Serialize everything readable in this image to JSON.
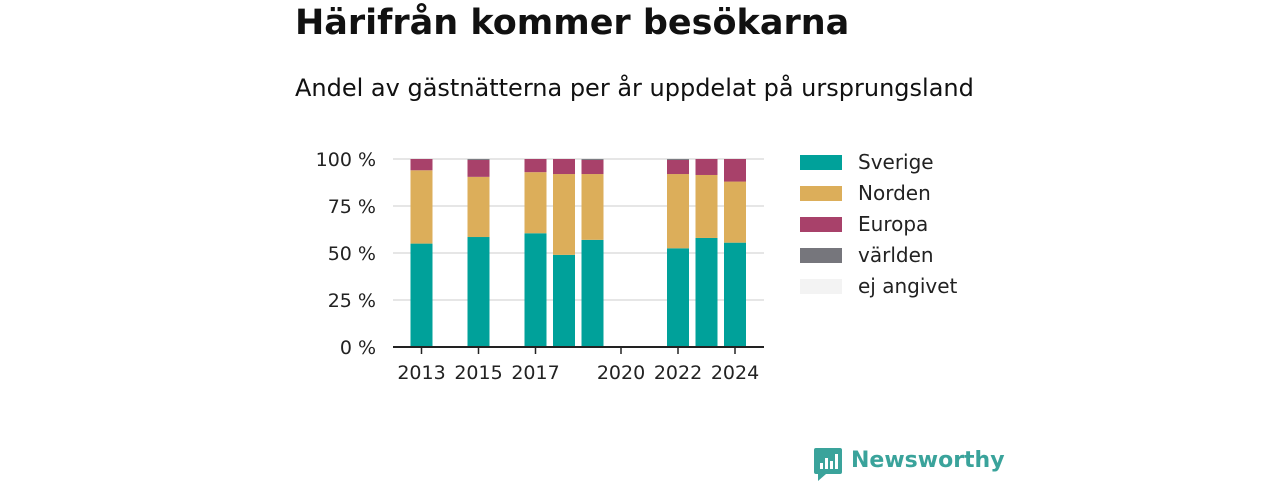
{
  "header": {
    "title": "Härifrån kommer besökarna",
    "subtitle": "Andel av gästnätterna per år uppdelat på ursprungsland"
  },
  "brand": {
    "name": "Newsworthy",
    "color": "#3aa39b",
    "icon": "bar-chart-speech-bubble-icon"
  },
  "chart_data": {
    "type": "bar",
    "stacked": true,
    "x": [
      2013,
      2014,
      2015,
      2016,
      2017,
      2018,
      2019,
      2020,
      2021,
      2022,
      2023,
      2024
    ],
    "x_ticks": [
      2013,
      2015,
      2017,
      2020,
      2022,
      2024
    ],
    "x_tick_labels": [
      "2013",
      "2015",
      "2017",
      "2020",
      "2022",
      "2024"
    ],
    "y_ticks": [
      0,
      25,
      50,
      75,
      100
    ],
    "y_tick_labels": [
      "0 %",
      "25 %",
      "50 %",
      "75 %",
      "100 %"
    ],
    "ylim": [
      0,
      100
    ],
    "grid": true,
    "legend_position": "right",
    "series": [
      {
        "name": "Sverige",
        "color": "#00a19a",
        "values": [
          55,
          null,
          58.5,
          null,
          60.5,
          49,
          57,
          null,
          null,
          52.5,
          58,
          55.5
        ]
      },
      {
        "name": "Norden",
        "color": "#dcae5a",
        "values": [
          39,
          null,
          32,
          null,
          32.5,
          43,
          35,
          null,
          null,
          39.5,
          33.5,
          32.5
        ]
      },
      {
        "name": "Europa",
        "color": "#a8416a",
        "values": [
          6,
          null,
          9,
          null,
          7,
          8,
          7.5,
          null,
          null,
          7.5,
          8.5,
          12
        ]
      },
      {
        "name": "världen",
        "color": "#76767c",
        "values": [
          0,
          null,
          0.5,
          null,
          0,
          0,
          0.5,
          null,
          null,
          0.5,
          0,
          0
        ]
      },
      {
        "name": "ej angivet",
        "color": "#f3f3f3",
        "values": [
          0,
          null,
          0,
          null,
          0,
          0,
          0,
          null,
          null,
          0,
          0,
          0
        ]
      }
    ]
  }
}
